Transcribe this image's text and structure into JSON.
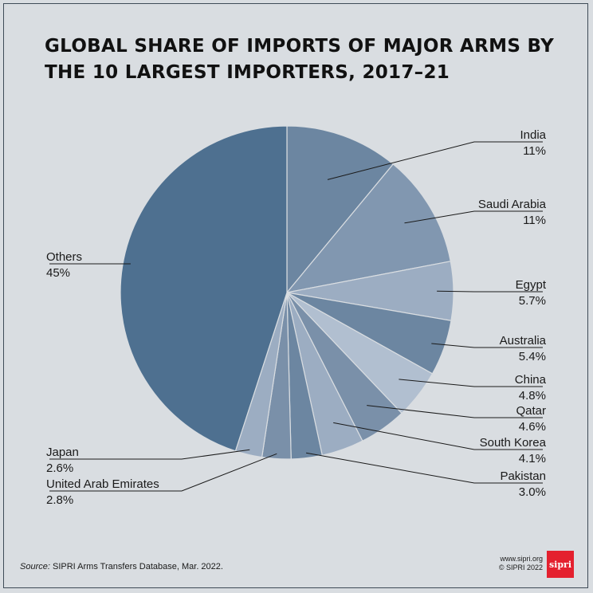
{
  "chart_data": {
    "type": "pie",
    "title": "GLOBAL SHARE OF IMPORTS OF MAJOR ARMS BY THE 10 LARGEST IMPORTERS, 2017–21",
    "slices": [
      {
        "label": "India",
        "value_label": "11%",
        "value": 11,
        "color": "#6c86a1"
      },
      {
        "label": "Saudi Arabia",
        "value_label": "11%",
        "value": 11,
        "color": "#8197b0"
      },
      {
        "label": "Egypt",
        "value_label": "5.7%",
        "value": 5.7,
        "color": "#9cadc2"
      },
      {
        "label": "Australia",
        "value_label": "5.4%",
        "value": 5.4,
        "color": "#6c86a1"
      },
      {
        "label": "China",
        "value_label": "4.8%",
        "value": 4.8,
        "color": "#b1bfd0"
      },
      {
        "label": "Qatar",
        "value_label": "4.6%",
        "value": 4.6,
        "color": "#7a90a9"
      },
      {
        "label": "South Korea",
        "value_label": "4.1%",
        "value": 4.1,
        "color": "#9cadc2"
      },
      {
        "label": "Pakistan",
        "value_label": "3.0%",
        "value": 3.0,
        "color": "#6c86a1"
      },
      {
        "label": "United Arab Emirates",
        "value_label": "2.8%",
        "value": 2.8,
        "color": "#7a90a9"
      },
      {
        "label": "Japan",
        "value_label": "2.6%",
        "value": 2.6,
        "color": "#9cadc2"
      },
      {
        "label": "Others",
        "value_label": "45%",
        "value": 45,
        "color": "#4e7090"
      }
    ]
  },
  "source": {
    "lead": "Source:",
    "text": "SIPRI Arms Transfers Database, Mar. 2022."
  },
  "credit": {
    "website": "www.sipri.org",
    "copyright": "© SIPRI 2022"
  },
  "logo_text": "sipri"
}
